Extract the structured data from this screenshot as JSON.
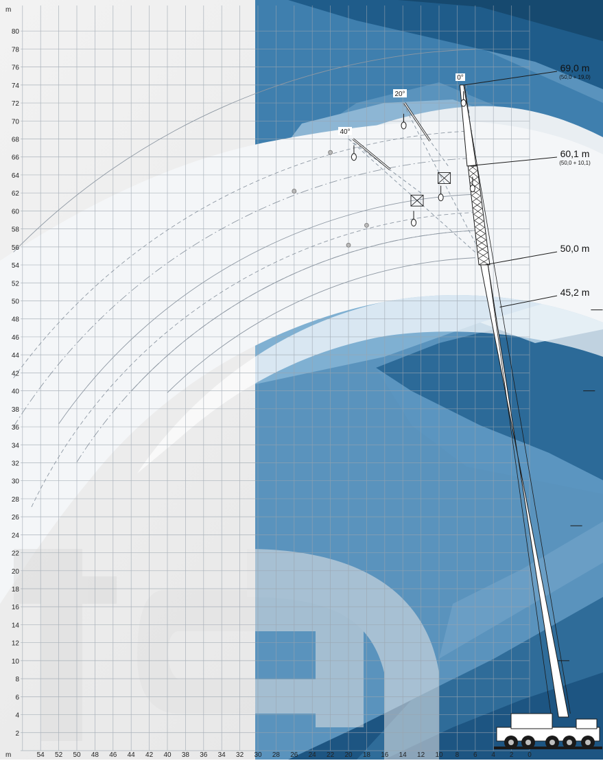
{
  "chart_data": {
    "type": "diagram",
    "axes": {
      "y_unit": "m",
      "x_unit": "m",
      "y_ticks": [
        2,
        4,
        6,
        8,
        10,
        12,
        14,
        16,
        18,
        20,
        22,
        24,
        26,
        28,
        30,
        32,
        34,
        36,
        38,
        40,
        42,
        44,
        46,
        48,
        50,
        52,
        54,
        56,
        58,
        60,
        62,
        64,
        66,
        68,
        70,
        72,
        74,
        76,
        78,
        80
      ],
      "x_ticks": [
        54,
        52,
        50,
        48,
        46,
        44,
        42,
        40,
        38,
        36,
        34,
        32,
        30,
        28,
        26,
        24,
        22,
        20,
        18,
        16,
        14,
        12,
        10,
        8,
        6,
        4,
        2,
        0
      ],
      "xlim": [
        54,
        0
      ],
      "ylim": [
        0,
        82
      ]
    },
    "boom_labels": [
      {
        "main": "69,0 m",
        "sub": "(50,0 + 19,0)",
        "height": 74
      },
      {
        "main": "60,1 m",
        "sub": "(50,0 + 10,1)",
        "height": 65
      },
      {
        "main": "50,0 m",
        "sub": "",
        "height": 54
      },
      {
        "main": "45,2 m",
        "sub": "",
        "height": 49
      }
    ],
    "offset_angles": [
      {
        "label": "0°",
        "tip_x": 7,
        "tip_y": 74
      },
      {
        "label": "20°",
        "tip_x": 14,
        "tip_y": 72
      },
      {
        "label": "40°",
        "tip_x": 20,
        "tip_y": 68
      }
    ],
    "radius_arcs": [
      {
        "r": 75,
        "style": "solid",
        "x_start": 57
      },
      {
        "r": 66,
        "style": "dash",
        "x_start": 57
      },
      {
        "r": 63,
        "style": "dashdot",
        "x_start": 57
      },
      {
        "r": 59,
        "style": "solid",
        "x_start": 52
      },
      {
        "r": 57,
        "style": "dash",
        "x_start": 55
      },
      {
        "r": 55,
        "style": "dashdot",
        "x_start": 50
      },
      {
        "r": 55,
        "style": "solid",
        "x_start": 44
      },
      {
        "r": 52,
        "style": "solid",
        "x_start": 40
      }
    ],
    "markers": [
      {
        "x": 22,
        "y": 66.5
      },
      {
        "x": 26,
        "y": 62.2
      },
      {
        "x": 18,
        "y": 58.4
      },
      {
        "x": 20,
        "y": 56.2
      }
    ]
  }
}
